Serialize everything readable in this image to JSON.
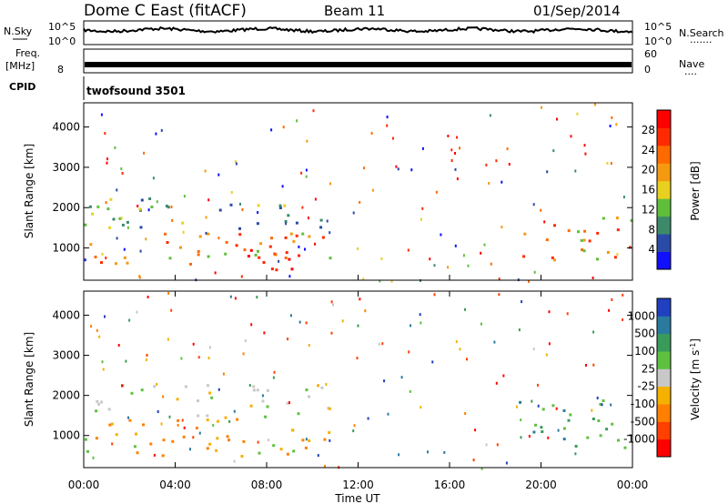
{
  "header": {
    "station": "Dome C East (fitACF)",
    "beam": "Beam 11",
    "date": "01/Sep/2014"
  },
  "status_panels": {
    "nsky_label": "N.Sky",
    "nsearch_label": "N.Search",
    "nsearch_dots": ".......",
    "nsky_ticks": [
      "10^5",
      "10^0"
    ],
    "nsearch_ticks": [
      "10^5",
      "10^0"
    ],
    "freq_label": "Freq.",
    "freq_unit": "[MHz]",
    "freq_ticks": [
      "8"
    ],
    "freq_value": 8,
    "nave_label": "Nave",
    "nave_dots": "....",
    "nave_ticks": [
      "60",
      "0"
    ],
    "cpid_label": "CPID",
    "cpid_text": "twofsound 3501"
  },
  "chart_data": [
    {
      "type": "heatmap",
      "name": "power",
      "ylabel": "Slant Range [km]",
      "ylim": [
        200,
        4600
      ],
      "yticks": [
        "1000",
        "2000",
        "3000",
        "4000"
      ],
      "colorbar": {
        "label": "Power [dB]",
        "tick_labels": [
          "4",
          "8",
          "12",
          "16",
          "20",
          "24",
          "28"
        ],
        "colors": [
          "#1010ff",
          "#2a4aa8",
          "#3c8a6a",
          "#5fbf3a",
          "#e8d020",
          "#f59a10",
          "#ff6a00",
          "#ff2a00",
          "#ff0000"
        ]
      },
      "regions": [
        {
          "t": [
            0,
            10.8
          ],
          "r": [
            1500,
            2300
          ],
          "level": "low"
        },
        {
          "t": [
            0,
            10.8
          ],
          "r": [
            600,
            1500
          ],
          "level": "high"
        },
        {
          "t": [
            7,
            10
          ],
          "r": [
            400,
            1300
          ],
          "level": "max"
        },
        {
          "t": [
            19,
            24
          ],
          "r": [
            700,
            1900
          ],
          "level": "high"
        }
      ]
    },
    {
      "type": "heatmap",
      "name": "velocity",
      "ylabel": "Slant Range [km]",
      "ylim": [
        200,
        4600
      ],
      "yticks": [
        "1000",
        "2000",
        "3000",
        "4000"
      ],
      "colorbar": {
        "label": "Velocity [m s^-1]",
        "tick_labels": [
          "1000",
          "500",
          "100",
          "25",
          "-25",
          "-100",
          "-500",
          "-1000"
        ],
        "colors": [
          "#2040c0",
          "#2a7aa0",
          "#3a9a5a",
          "#5fc040",
          "#c8c8c8",
          "#f5b000",
          "#ff8000",
          "#ff4000",
          "#ff0000"
        ]
      },
      "regions": [
        {
          "t": [
            0,
            10.8
          ],
          "r": [
            1500,
            2300
          ],
          "level": "grey"
        },
        {
          "t": [
            0,
            10.8
          ],
          "r": [
            500,
            1500
          ],
          "level": "orange"
        },
        {
          "t": [
            19,
            24
          ],
          "r": [
            700,
            1900
          ],
          "level": "green"
        }
      ]
    }
  ],
  "x_axis": {
    "ticks": [
      "00:00",
      "04:00",
      "08:00",
      "12:00",
      "16:00",
      "20:00",
      "00:00"
    ],
    "label": "Time UT",
    "range_hours": [
      0,
      24
    ]
  }
}
